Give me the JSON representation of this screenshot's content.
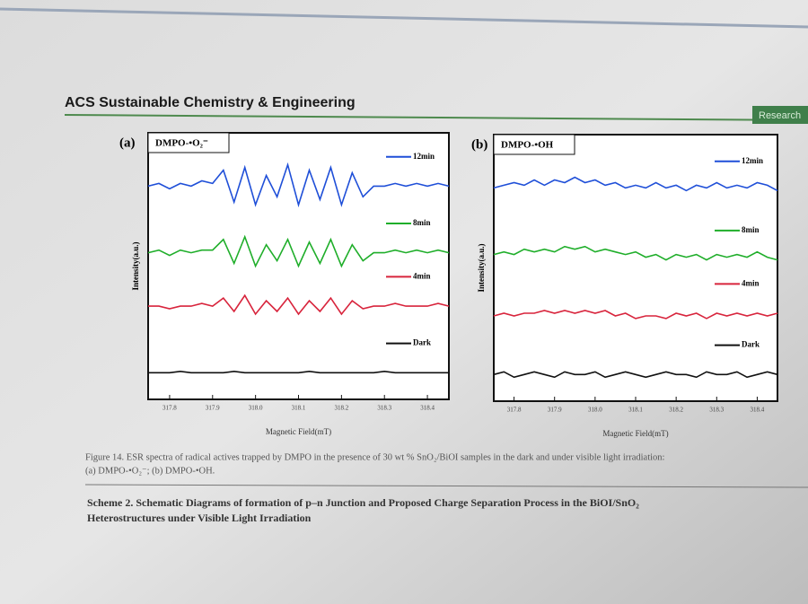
{
  "header": {
    "journal": "ACS Sustainable Chemistry & Engineering",
    "section": "Research"
  },
  "chart_data": [
    {
      "type": "line",
      "panel": "(a)",
      "title": "DMPO-•O₂⁻",
      "x_label": "Magnetic Field(mT)",
      "y_label": "Intensity(a.u.)",
      "xlim": [
        317.75,
        318.45
      ],
      "ylim": [
        0,
        10
      ],
      "xticks": [
        317.8,
        317.9,
        {
          "value": 318,
          "label": "318.0"
        },
        318.1,
        318.2,
        318.3,
        318.4
      ],
      "x": [
        317.75,
        317.775,
        317.8,
        317.825,
        317.85,
        317.875,
        317.9,
        317.925,
        317.95,
        317.975,
        318,
        318.025,
        318.05,
        318.075,
        318.1,
        318.125,
        318.15,
        318.175,
        318.2,
        318.225,
        318.25,
        318.275,
        318.3,
        318.325,
        318.35,
        318.375,
        318.4,
        318.425,
        318.45
      ],
      "series": [
        {
          "name": "12min",
          "color": "#1f4fd8",
          "values": [
            8.0,
            8.1,
            7.9,
            8.1,
            8.0,
            8.2,
            8.1,
            8.6,
            7.4,
            8.7,
            7.3,
            8.4,
            7.6,
            8.8,
            7.3,
            8.6,
            7.5,
            8.7,
            7.3,
            8.5,
            7.6,
            8.0,
            8.0,
            8.1,
            8.0,
            8.1,
            8.0,
            8.1,
            8.0
          ]
        },
        {
          "name": "8min",
          "color": "#1fae2a",
          "values": [
            5.5,
            5.6,
            5.4,
            5.6,
            5.5,
            5.6,
            5.6,
            6.0,
            5.1,
            6.1,
            5.0,
            5.8,
            5.2,
            6.0,
            5.0,
            5.9,
            5.1,
            6.0,
            5.0,
            5.8,
            5.2,
            5.5,
            5.5,
            5.6,
            5.5,
            5.6,
            5.5,
            5.6,
            5.5
          ]
        },
        {
          "name": "4min",
          "color": "#d8243c",
          "values": [
            3.5,
            3.5,
            3.4,
            3.5,
            3.5,
            3.6,
            3.5,
            3.8,
            3.3,
            3.9,
            3.2,
            3.7,
            3.3,
            3.8,
            3.2,
            3.7,
            3.3,
            3.8,
            3.2,
            3.7,
            3.4,
            3.5,
            3.5,
            3.6,
            3.5,
            3.5,
            3.5,
            3.6,
            3.5
          ]
        },
        {
          "name": "Dark",
          "color": "#111111",
          "values": [
            1.0,
            1.0,
            1.0,
            1.05,
            1.0,
            1.0,
            1.0,
            1.0,
            1.05,
            1.0,
            1.0,
            1.0,
            1.0,
            1.0,
            1.0,
            1.05,
            1.0,
            1.0,
            1.0,
            1.0,
            1.0,
            1.0,
            1.05,
            1.0,
            1.0,
            1.0,
            1.0,
            1.0,
            1.0
          ]
        }
      ]
    },
    {
      "type": "line",
      "panel": "(b)",
      "title": "DMPO-•OH",
      "x_label": "Magnetic Field(mT)",
      "y_label": "Intensity(a.u.)",
      "xlim": [
        317.75,
        318.45
      ],
      "ylim": [
        0,
        10
      ],
      "xticks": [
        317.8,
        317.9,
        {
          "value": 318,
          "label": "318.0"
        },
        318.1,
        318.2,
        318.3,
        318.4
      ],
      "x": [
        317.75,
        317.775,
        317.8,
        317.825,
        317.85,
        317.875,
        317.9,
        317.925,
        317.95,
        317.975,
        318,
        318.025,
        318.05,
        318.075,
        318.1,
        318.125,
        318.15,
        318.175,
        318.2,
        318.225,
        318.25,
        318.275,
        318.3,
        318.325,
        318.35,
        318.375,
        318.4,
        318.425,
        318.45
      ],
      "series": [
        {
          "name": "12min",
          "color": "#1f4fd8",
          "values": [
            8.0,
            8.1,
            8.2,
            8.1,
            8.3,
            8.1,
            8.3,
            8.2,
            8.4,
            8.2,
            8.3,
            8.1,
            8.2,
            8.0,
            8.1,
            8.0,
            8.2,
            8.0,
            8.1,
            7.9,
            8.1,
            8.0,
            8.2,
            8.0,
            8.1,
            8.0,
            8.2,
            8.1,
            7.9
          ]
        },
        {
          "name": "8min",
          "color": "#1fae2a",
          "values": [
            5.5,
            5.6,
            5.5,
            5.7,
            5.6,
            5.7,
            5.6,
            5.8,
            5.7,
            5.8,
            5.6,
            5.7,
            5.6,
            5.5,
            5.6,
            5.4,
            5.5,
            5.3,
            5.5,
            5.4,
            5.5,
            5.3,
            5.5,
            5.4,
            5.5,
            5.4,
            5.6,
            5.4,
            5.3
          ]
        },
        {
          "name": "4min",
          "color": "#d8243c",
          "values": [
            3.2,
            3.3,
            3.2,
            3.3,
            3.3,
            3.4,
            3.3,
            3.4,
            3.3,
            3.4,
            3.3,
            3.4,
            3.2,
            3.3,
            3.1,
            3.2,
            3.2,
            3.1,
            3.3,
            3.2,
            3.3,
            3.1,
            3.3,
            3.2,
            3.3,
            3.2,
            3.3,
            3.2,
            3.3
          ]
        },
        {
          "name": "Dark",
          "color": "#111111",
          "values": [
            1.0,
            1.1,
            0.9,
            1.0,
            1.1,
            1.0,
            0.9,
            1.1,
            1.0,
            1.0,
            1.1,
            0.9,
            1.0,
            1.1,
            1.0,
            0.9,
            1.0,
            1.1,
            1.0,
            1.0,
            0.9,
            1.1,
            1.0,
            1.0,
            1.1,
            0.9,
            1.0,
            1.1,
            1.0
          ]
        }
      ]
    }
  ],
  "caption": {
    "line1": "Figure 14. ESR spectra of radical actives trapped by DMPO in the presence of 30 wt % SnO₂/BiOI samples in the dark and under visible light irradiation:",
    "line2": "(a) DMPO-•O₂⁻; (b) DMPO-•OH."
  },
  "scheme": {
    "line1": "Scheme 2. Schematic Diagrams of formation of p–n Junction and Proposed Charge Separation Process in the BiOI/SnO₂",
    "line2": "Heterostructures under Visible Light Irradiation"
  }
}
